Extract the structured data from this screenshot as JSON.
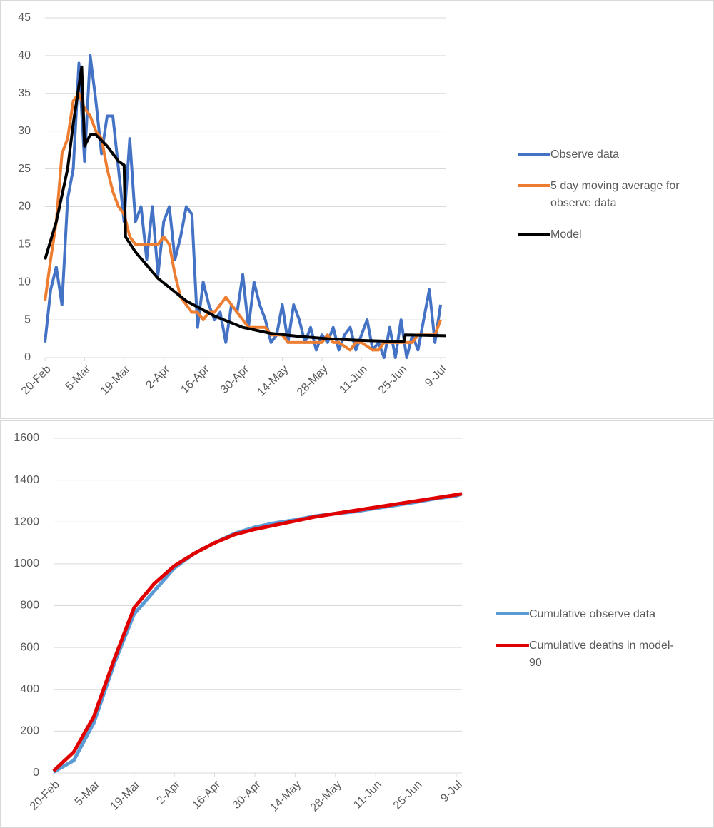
{
  "chart_data": [
    {
      "type": "line",
      "xlim": [
        0,
        142
      ],
      "ylim": [
        0,
        45
      ],
      "xticks": [
        {
          "value": 0,
          "label": "20-Feb"
        },
        {
          "value": 14,
          "label": "5-Mar"
        },
        {
          "value": 28,
          "label": "19-Mar"
        },
        {
          "value": 42,
          "label": "2-Apr"
        },
        {
          "value": 56,
          "label": "16-Apr"
        },
        {
          "value": 70,
          "label": "30-Apr"
        },
        {
          "value": 84,
          "label": "14-May"
        },
        {
          "value": 98,
          "label": "28-May"
        },
        {
          "value": 112,
          "label": "11-Jun"
        },
        {
          "value": 126,
          "label": "25-Jun"
        },
        {
          "value": 140,
          "label": "9-Jul"
        }
      ],
      "yticks": [
        0,
        5,
        10,
        15,
        20,
        25,
        30,
        35,
        40,
        45
      ],
      "grid": true,
      "x": [
        0,
        2,
        4,
        6,
        8,
        10,
        12,
        14,
        16,
        18,
        20,
        22,
        24,
        26,
        28,
        30,
        32,
        34,
        36,
        38,
        40,
        42,
        44,
        46,
        48,
        50,
        52,
        54,
        56,
        58,
        60,
        62,
        64,
        66,
        68,
        70,
        72,
        74,
        76,
        78,
        80,
        82,
        84,
        86,
        88,
        90,
        92,
        94,
        96,
        98,
        100,
        102,
        104,
        106,
        108,
        110,
        112,
        114,
        116,
        118,
        120,
        122,
        124,
        126,
        128,
        130,
        132,
        134,
        136,
        138,
        140
      ],
      "series": [
        {
          "name": "Observe data",
          "color": "#4472c4",
          "values": [
            2,
            9,
            12,
            7,
            21,
            25,
            39,
            26,
            40,
            34,
            27,
            32,
            32,
            25,
            18,
            29,
            18,
            20,
            13,
            20,
            11,
            18,
            20,
            13,
            16,
            20,
            19,
            4,
            10,
            7,
            5,
            6,
            2,
            7,
            6,
            11,
            4,
            10,
            7,
            5,
            2,
            3,
            7,
            2,
            7,
            5,
            2,
            4,
            1,
            3,
            2,
            4,
            1,
            3,
            4,
            1,
            3,
            5,
            1,
            2,
            0,
            4,
            0,
            5,
            0,
            3,
            1,
            5,
            9,
            2,
            7
          ]
        },
        {
          "name": "5 day moving average for observe data",
          "color": "#ed7d31",
          "values": [
            7.5,
            13,
            18,
            27,
            29,
            34,
            35,
            33,
            32,
            30,
            29,
            25,
            22,
            20,
            19,
            16,
            15,
            15,
            15,
            15,
            15,
            16,
            15,
            11,
            8,
            7,
            6,
            6,
            5,
            6,
            6,
            7,
            8,
            7,
            6,
            5,
            4,
            4,
            4,
            4,
            3,
            3,
            3,
            2,
            2,
            2,
            2,
            2,
            2,
            2,
            3,
            2,
            2,
            1.5,
            1,
            2,
            2,
            1.5,
            1,
            1,
            2,
            2,
            2,
            2,
            2,
            2,
            3,
            3,
            3,
            3,
            5
          ]
        },
        {
          "name": "Model",
          "color": "#000000",
          "x": [
            0,
            4,
            8,
            10,
            12,
            13,
            14,
            16,
            18,
            22,
            26,
            28,
            28.5,
            32,
            40,
            50,
            60,
            70,
            80,
            90,
            100,
            110,
            127,
            127.5,
            142
          ],
          "values": [
            13,
            18,
            25,
            31,
            36,
            38.5,
            28,
            29.5,
            29.5,
            28,
            26,
            25.5,
            16,
            14,
            10.5,
            7.5,
            5.5,
            4,
            3.2,
            2.8,
            2.5,
            2.3,
            2.1,
            3,
            2.9
          ]
        }
      ]
    },
    {
      "type": "line",
      "xlim": [
        0,
        142
      ],
      "ylim": [
        0,
        1600
      ],
      "xticks": [
        {
          "value": 0,
          "label": "20-Feb"
        },
        {
          "value": 14,
          "label": "5-Mar"
        },
        {
          "value": 28,
          "label": "19-Mar"
        },
        {
          "value": 42,
          "label": "2-Apr"
        },
        {
          "value": 56,
          "label": "16-Apr"
        },
        {
          "value": 70,
          "label": "30-Apr"
        },
        {
          "value": 84,
          "label": "14-May"
        },
        {
          "value": 98,
          "label": "28-May"
        },
        {
          "value": 112,
          "label": "11-Jun"
        },
        {
          "value": 126,
          "label": "25-Jun"
        },
        {
          "value": 140,
          "label": "9-Jul"
        }
      ],
      "yticks": [
        0,
        200,
        400,
        600,
        800,
        1000,
        1200,
        1400,
        1600
      ],
      "grid": true,
      "x": [
        0,
        7,
        14,
        21,
        28,
        35,
        42,
        49,
        56,
        63,
        70,
        77,
        84,
        91,
        98,
        105,
        112,
        119,
        126,
        133,
        140,
        142
      ],
      "series": [
        {
          "name": "Cumulative observe data",
          "color": "#5b9bd5",
          "values": [
            5,
            60,
            240,
            520,
            760,
            870,
            980,
            1050,
            1100,
            1145,
            1175,
            1195,
            1210,
            1228,
            1240,
            1250,
            1265,
            1280,
            1295,
            1312,
            1325,
            1335
          ]
        },
        {
          "name": "Cumulative deaths in model-90",
          "color": "#e00000",
          "values": [
            10,
            100,
            270,
            540,
            790,
            905,
            990,
            1050,
            1100,
            1140,
            1165,
            1185,
            1205,
            1225,
            1240,
            1255,
            1270,
            1285,
            1300,
            1315,
            1330,
            1335
          ]
        }
      ]
    }
  ]
}
